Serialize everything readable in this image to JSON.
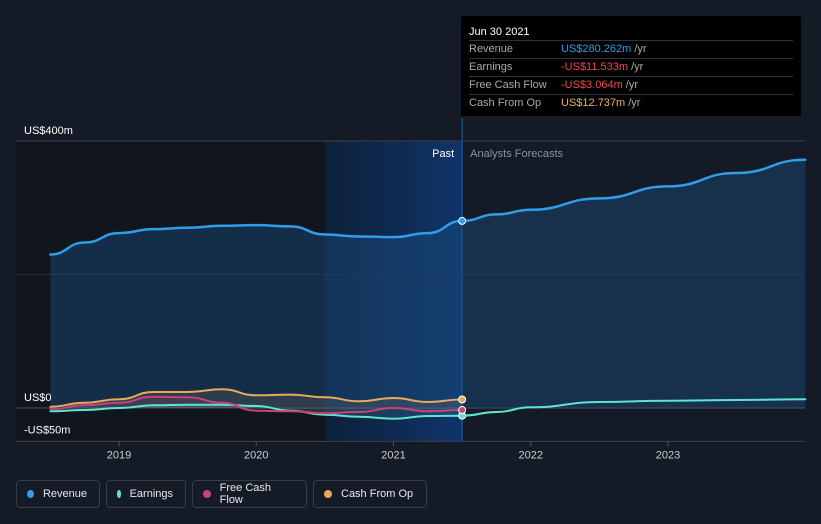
{
  "tooltip": {
    "date": "Jun 30 2021",
    "rows": [
      {
        "label": "Revenue",
        "value": "US$280.262m",
        "unit": "/yr",
        "color": "#2f9ee9"
      },
      {
        "label": "Earnings",
        "value": "-US$11.533m",
        "unit": "/yr",
        "color": "#f2474a"
      },
      {
        "label": "Free Cash Flow",
        "value": "-US$3.064m",
        "unit": "/yr",
        "color": "#f2474a"
      },
      {
        "label": "Cash From Op",
        "value": "US$12.737m",
        "unit": "/yr",
        "color": "#f0b45a"
      }
    ]
  },
  "legend": [
    {
      "label": "Revenue",
      "color": "#2f9ee9"
    },
    {
      "label": "Earnings",
      "color": "#5ee5cc"
    },
    {
      "label": "Free Cash Flow",
      "color": "#c8417c"
    },
    {
      "label": "Cash From Op",
      "color": "#e8a95c"
    }
  ],
  "chart_data": {
    "type": "line",
    "y_tick_labels": [
      "US$400m",
      "US$0",
      "-US$50m"
    ],
    "x_tick_labels": [
      "2019",
      "2020",
      "2021",
      "2022",
      "2023"
    ],
    "ylim": [
      -50,
      400
    ],
    "past_label": "Past",
    "forecast_label": "Analysts Forecasts",
    "past_end": 2021.5,
    "highlight_start": 2020.5,
    "series": [
      {
        "name": "Revenue",
        "color": "#2f9ee9",
        "points": [
          [
            2018.5,
            230
          ],
          [
            2018.75,
            248
          ],
          [
            2019.0,
            262
          ],
          [
            2019.25,
            268
          ],
          [
            2019.5,
            270
          ],
          [
            2019.75,
            273
          ],
          [
            2020.0,
            274
          ],
          [
            2020.25,
            272
          ],
          [
            2020.5,
            260
          ],
          [
            2020.75,
            257
          ],
          [
            2021.0,
            256
          ],
          [
            2021.25,
            262
          ],
          [
            2021.5,
            280.262
          ]
        ],
        "forecast": [
          [
            2021.5,
            280.262
          ],
          [
            2021.75,
            290
          ],
          [
            2022.0,
            297
          ],
          [
            2022.5,
            314
          ],
          [
            2023.0,
            332
          ],
          [
            2023.5,
            352
          ],
          [
            2024.0,
            372
          ]
        ]
      },
      {
        "name": "Earnings",
        "color": "#5ee5cc",
        "points": [
          [
            2018.5,
            -5
          ],
          [
            2018.75,
            -3
          ],
          [
            2019.0,
            0
          ],
          [
            2019.25,
            4
          ],
          [
            2019.5,
            5
          ],
          [
            2019.75,
            5
          ],
          [
            2020.0,
            3
          ],
          [
            2020.25,
            -4
          ],
          [
            2020.5,
            -10
          ],
          [
            2020.75,
            -13
          ],
          [
            2021.0,
            -16
          ],
          [
            2021.25,
            -12
          ],
          [
            2021.5,
            -11.533
          ]
        ],
        "forecast": [
          [
            2021.5,
            -11.533
          ],
          [
            2021.75,
            -6
          ],
          [
            2022.0,
            1
          ],
          [
            2022.5,
            9
          ],
          [
            2023.0,
            11
          ],
          [
            2023.5,
            12
          ],
          [
            2024.0,
            13
          ]
        ]
      },
      {
        "name": "Free Cash Flow",
        "color": "#c8417c",
        "points": [
          [
            2018.5,
            -2
          ],
          [
            2018.75,
            4
          ],
          [
            2019.0,
            8
          ],
          [
            2019.25,
            17
          ],
          [
            2019.5,
            16
          ],
          [
            2019.75,
            8
          ],
          [
            2020.0,
            -4
          ],
          [
            2020.25,
            -5
          ],
          [
            2020.5,
            -8
          ],
          [
            2020.75,
            -6
          ],
          [
            2021.0,
            0
          ],
          [
            2021.25,
            -5
          ],
          [
            2021.5,
            -3.064
          ]
        ]
      },
      {
        "name": "Cash From Op",
        "color": "#e8a95c",
        "points": [
          [
            2018.5,
            2
          ],
          [
            2018.75,
            8
          ],
          [
            2019.0,
            13
          ],
          [
            2019.25,
            24
          ],
          [
            2019.5,
            24
          ],
          [
            2019.75,
            28
          ],
          [
            2020.0,
            19
          ],
          [
            2020.25,
            20
          ],
          [
            2020.5,
            16
          ],
          [
            2020.75,
            10
          ],
          [
            2021.0,
            15
          ],
          [
            2021.25,
            9
          ],
          [
            2021.5,
            12.737
          ]
        ]
      }
    ]
  }
}
